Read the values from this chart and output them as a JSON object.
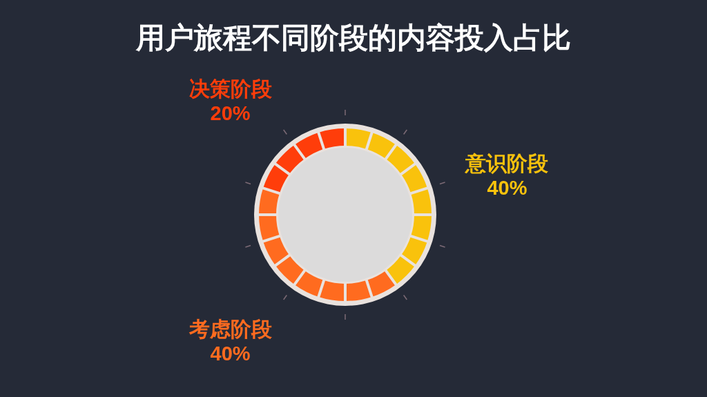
{
  "chart_data": {
    "type": "donut",
    "title": "用户旅程不同阶段的内容投入占比",
    "categories": [
      "意识阶段",
      "考虑阶段",
      "决策阶段"
    ],
    "values": [
      40,
      40,
      20
    ],
    "colors": [
      "#f9c20c",
      "#ff6b1f",
      "#ff3d0a"
    ],
    "value_labels": [
      "40%",
      "40%",
      "20%"
    ]
  }
}
